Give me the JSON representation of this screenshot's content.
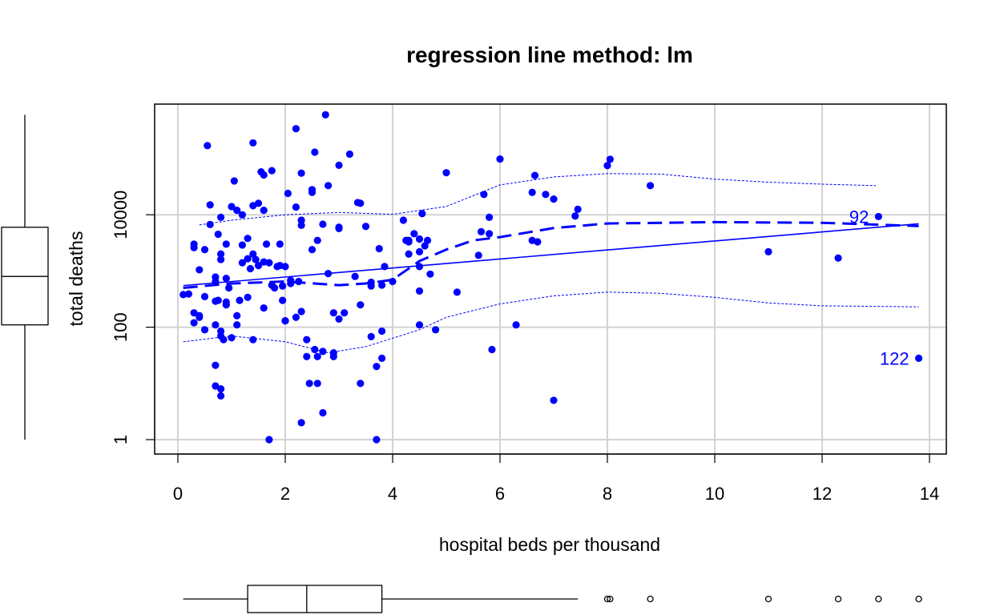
{
  "chart_data": {
    "type": "scatter",
    "title": "regression line method: lm",
    "xlabel": "hospital beds per thousand",
    "ylabel": "total deaths",
    "xlim": [
      0,
      14
    ],
    "ylog": true,
    "ylim": [
      0.6,
      800000
    ],
    "x_ticks": [
      "0",
      "2",
      "4",
      "6",
      "8",
      "10",
      "12",
      "14"
    ],
    "x_tick_values": [
      0,
      2,
      4,
      6,
      8,
      10,
      12,
      14
    ],
    "y_ticks": [
      "1",
      "100",
      "10000"
    ],
    "y_tick_values": [
      1,
      100,
      10000
    ],
    "grid": true,
    "point_color": "#0000ff",
    "labeled_points": [
      {
        "label": "92",
        "x": 13.05,
        "y": 9300
      },
      {
        "label": "122",
        "x": 13.8,
        "y": 28
      }
    ],
    "points": [
      [
        0.1,
        380
      ],
      [
        0.2,
        390
      ],
      [
        0.3,
        3000
      ],
      [
        0.3,
        2600
      ],
      [
        0.3,
        180
      ],
      [
        0.3,
        120
      ],
      [
        0.4,
        1050
      ],
      [
        0.4,
        160
      ],
      [
        0.4,
        150
      ],
      [
        0.5,
        350
      ],
      [
        0.5,
        2400
      ],
      [
        0.5,
        90
      ],
      [
        0.55,
        170000
      ],
      [
        0.6,
        15000
      ],
      [
        0.6,
        6700
      ],
      [
        0.7,
        780
      ],
      [
        0.7,
        650
      ],
      [
        0.7,
        290
      ],
      [
        0.7,
        110
      ],
      [
        0.7,
        21
      ],
      [
        0.7,
        9
      ],
      [
        0.75,
        4500
      ],
      [
        0.75,
        300
      ],
      [
        0.8,
        8
      ],
      [
        0.8,
        6
      ],
      [
        0.8,
        1600
      ],
      [
        0.8,
        2000
      ],
      [
        0.8,
        9000
      ],
      [
        0.8,
        85
      ],
      [
        0.8,
        70
      ],
      [
        0.85,
        60
      ],
      [
        0.9,
        740
      ],
      [
        0.9,
        280
      ],
      [
        0.9,
        250
      ],
      [
        0.9,
        3000
      ],
      [
        0.95,
        500
      ],
      [
        1.0,
        14000
      ],
      [
        1.0,
        65
      ],
      [
        1.05,
        40000
      ],
      [
        1.1,
        12000
      ],
      [
        1.1,
        160
      ],
      [
        1.1,
        110
      ],
      [
        1.15,
        300
      ],
      [
        1.2,
        2900
      ],
      [
        1.2,
        1400
      ],
      [
        1.2,
        10000
      ],
      [
        1.3,
        1650
      ],
      [
        1.3,
        340
      ],
      [
        1.3,
        3800
      ],
      [
        1.35,
        1100
      ],
      [
        1.4,
        2000
      ],
      [
        1.4,
        190000
      ],
      [
        1.4,
        14500
      ],
      [
        1.4,
        60
      ],
      [
        1.45,
        1600
      ],
      [
        1.5,
        16000
      ],
      [
        1.5,
        1250
      ],
      [
        1.55,
        58000
      ],
      [
        1.6,
        1450
      ],
      [
        1.6,
        51000
      ],
      [
        1.6,
        12000
      ],
      [
        1.6,
        220
      ],
      [
        1.65,
        3000
      ],
      [
        1.7,
        1400
      ],
      [
        1.75,
        560
      ],
      [
        1.75,
        61000
      ],
      [
        1.7,
        1
      ],
      [
        1.8,
        500
      ],
      [
        1.85,
        1200
      ],
      [
        1.9,
        3000
      ],
      [
        1.9,
        1250
      ],
      [
        1.95,
        540
      ],
      [
        1.95,
        300
      ],
      [
        2.0,
        130
      ],
      [
        2.0,
        130
      ],
      [
        2.0,
        1200
      ],
      [
        2.05,
        24000
      ],
      [
        2.1,
        600
      ],
      [
        2.1,
        680
      ],
      [
        2.2,
        340000
      ],
      [
        2.2,
        150
      ],
      [
        2.2,
        13700
      ],
      [
        2.25,
        650
      ],
      [
        2.3,
        55000
      ],
      [
        2.3,
        8000
      ],
      [
        2.3,
        6500
      ],
      [
        2.3,
        190
      ],
      [
        2.3,
        2
      ],
      [
        2.4,
        60
      ],
      [
        2.4,
        30
      ],
      [
        2.45,
        10
      ],
      [
        2.5,
        28000
      ],
      [
        2.5,
        2400
      ],
      [
        2.5,
        25000
      ],
      [
        2.55,
        130000
      ],
      [
        2.55,
        40
      ],
      [
        2.6,
        3500
      ],
      [
        2.6,
        30
      ],
      [
        2.6,
        10
      ],
      [
        2.7,
        3
      ],
      [
        2.7,
        6800
      ],
      [
        2.7,
        37
      ],
      [
        2.75,
        600000
      ],
      [
        2.8,
        900
      ],
      [
        2.8,
        33000
      ],
      [
        2.9,
        30
      ],
      [
        2.9,
        35
      ],
      [
        2.9,
        180
      ],
      [
        3.0,
        6000
      ],
      [
        3.0,
        5700
      ],
      [
        3.0,
        76000
      ],
      [
        3.0,
        140
      ],
      [
        3.1,
        180
      ],
      [
        3.2,
        120000
      ],
      [
        3.3,
        800
      ],
      [
        3.35,
        16500
      ],
      [
        3.4,
        16000
      ],
      [
        3.4,
        250
      ],
      [
        3.4,
        10
      ],
      [
        3.5,
        6200
      ],
      [
        3.6,
        68
      ],
      [
        3.6,
        630
      ],
      [
        3.6,
        540
      ],
      [
        3.7,
        20
      ],
      [
        3.7,
        1
      ],
      [
        3.75,
        2500
      ],
      [
        3.8,
        85
      ],
      [
        3.8,
        28
      ],
      [
        3.8,
        560
      ],
      [
        3.85,
        1200
      ],
      [
        4.0,
        650
      ],
      [
        4.2,
        8000
      ],
      [
        4.25,
        3500
      ],
      [
        4.3,
        3300
      ],
      [
        4.3,
        2000
      ],
      [
        4.3,
        3500
      ],
      [
        4.4,
        4600
      ],
      [
        4.5,
        440
      ],
      [
        4.5,
        1200
      ],
      [
        4.5,
        2200
      ],
      [
        4.5,
        3700
      ],
      [
        4.5,
        110
      ],
      [
        4.55,
        10500
      ],
      [
        4.6,
        2800
      ],
      [
        4.65,
        3500
      ],
      [
        4.7,
        880
      ],
      [
        4.8,
        90
      ],
      [
        5.0,
        56000
      ],
      [
        5.2,
        420
      ],
      [
        5.6,
        1900
      ],
      [
        5.65,
        5000
      ],
      [
        5.7,
        23000
      ],
      [
        5.8,
        4600
      ],
      [
        5.8,
        9000
      ],
      [
        5.85,
        40
      ],
      [
        6.0,
        98000
      ],
      [
        6.3,
        110
      ],
      [
        6.6,
        3500
      ],
      [
        6.6,
        25000
      ],
      [
        6.65,
        50000
      ],
      [
        6.7,
        3300
      ],
      [
        6.85,
        23000
      ],
      [
        7.0,
        19000
      ],
      [
        7.0,
        5
      ],
      [
        7.4,
        9500
      ],
      [
        7.45,
        12500
      ],
      [
        8.0,
        75000
      ],
      [
        8.05,
        97000
      ],
      [
        8.8,
        33000
      ],
      [
        11.0,
        2200
      ],
      [
        12.3,
        1700
      ],
      [
        13.05,
        9300
      ],
      [
        13.8,
        28
      ]
    ],
    "lines": {
      "lm_fit": {
        "from": [
          0.1,
          550
        ],
        "to": [
          13.8,
          6900
        ]
      },
      "smooth": [
        [
          0.1,
          500
        ],
        [
          1,
          600
        ],
        [
          2,
          650
        ],
        [
          3,
          560
        ],
        [
          3.5,
          600
        ],
        [
          4,
          700
        ],
        [
          4.5,
          1500
        ],
        [
          5,
          2400
        ],
        [
          5.5,
          3500
        ],
        [
          6,
          4000
        ],
        [
          7,
          5800
        ],
        [
          8,
          7000
        ],
        [
          10,
          7400
        ],
        [
          12,
          7200
        ],
        [
          13.8,
          6300
        ]
      ],
      "band_upper": [
        [
          0.4,
          6600
        ],
        [
          1,
          8000
        ],
        [
          2,
          10000
        ],
        [
          3,
          11000
        ],
        [
          4,
          10200
        ],
        [
          5,
          14000
        ],
        [
          6,
          34000
        ],
        [
          7,
          47000
        ],
        [
          8,
          54000
        ],
        [
          9,
          53000
        ],
        [
          10,
          43000
        ],
        [
          11,
          38000
        ],
        [
          12,
          35000
        ],
        [
          13,
          33000
        ]
      ],
      "band_lower": [
        [
          0.1,
          55
        ],
        [
          1,
          70
        ],
        [
          2,
          55
        ],
        [
          2.8,
          35
        ],
        [
          3.5,
          45
        ],
        [
          4.5,
          90
        ],
        [
          5,
          150
        ],
        [
          6,
          260
        ],
        [
          7,
          360
        ],
        [
          8,
          420
        ],
        [
          9,
          400
        ],
        [
          10,
          340
        ],
        [
          11,
          270
        ],
        [
          12,
          240
        ],
        [
          13.8,
          230
        ]
      ]
    },
    "marginal_boxplot_x": {
      "whisker_low": 0.1,
      "q1": 1.3,
      "median": 2.4,
      "q3": 3.8,
      "whisker_high": 7.45,
      "outliers": [
        8.0,
        8.05,
        8.8,
        11.0,
        12.3,
        13.05,
        13.8
      ]
    },
    "marginal_boxplot_y": {
      "whisker_low": 1,
      "q1": 110,
      "median": 800,
      "q3": 6000,
      "whisker_high": 600000
    }
  }
}
